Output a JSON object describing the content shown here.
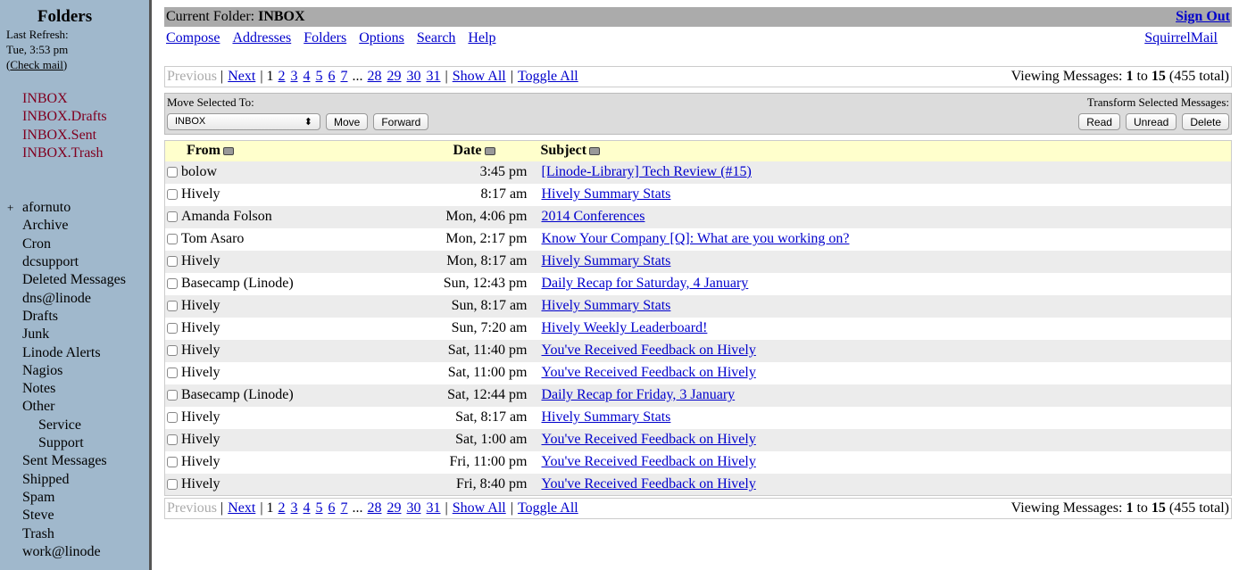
{
  "sidebar": {
    "title": "Folders",
    "last_refresh_label": "Last Refresh:",
    "last_refresh_time": "Tue, 3:53 pm",
    "check_mail": "Check mail",
    "special_folders": [
      "INBOX",
      "INBOX.Drafts",
      "INBOX.Sent",
      "INBOX.Trash"
    ],
    "folders": [
      {
        "name": "afornuto",
        "expander": "+"
      },
      {
        "name": "Archive"
      },
      {
        "name": "Cron"
      },
      {
        "name": "dcsupport"
      },
      {
        "name": "Deleted Messages"
      },
      {
        "name": "dns@linode"
      },
      {
        "name": "Drafts"
      },
      {
        "name": "Junk"
      },
      {
        "name": "Linode Alerts"
      },
      {
        "name": "Nagios"
      },
      {
        "name": "Notes"
      },
      {
        "name": "Other"
      },
      {
        "name": "Service",
        "sub": true
      },
      {
        "name": "Support",
        "sub": true
      },
      {
        "name": "Sent Messages"
      },
      {
        "name": "Shipped"
      },
      {
        "name": "Spam"
      },
      {
        "name": "Steve"
      },
      {
        "name": "Trash"
      },
      {
        "name": "work@linode"
      }
    ]
  },
  "header": {
    "current_folder_label": "Current Folder:",
    "current_folder": "INBOX",
    "sign_out": "Sign Out",
    "brand": "SquirrelMail",
    "menu": [
      "Compose",
      "Addresses",
      "Folders",
      "Options",
      "Search",
      "Help"
    ]
  },
  "pager": {
    "previous": "Previous",
    "next": "Next",
    "current_page": "1",
    "pages": [
      "2",
      "3",
      "4",
      "5",
      "6",
      "7"
    ],
    "ellipsis": "...",
    "last_pages": [
      "28",
      "29",
      "30",
      "31"
    ],
    "show_all": "Show All",
    "toggle_all": "Toggle All",
    "viewing_label": "Viewing Messages:",
    "from": "1",
    "to_label": "to",
    "to": "15",
    "total": "(455 total)"
  },
  "toolbar": {
    "move_label": "Move Selected To:",
    "move_select": "INBOX",
    "move": "Move",
    "forward": "Forward",
    "transform_label": "Transform Selected Messages:",
    "read": "Read",
    "unread": "Unread",
    "delete": "Delete"
  },
  "table": {
    "columns": [
      "From",
      "Date",
      "Subject"
    ],
    "rows": [
      {
        "from": "bolow",
        "date": "3:45 pm",
        "subject": "[Linode-Library] Tech Review (#15)"
      },
      {
        "from": "Hively",
        "date": "8:17 am",
        "subject": "Hively Summary Stats"
      },
      {
        "from": "Amanda Folson",
        "date": "Mon, 4:06 pm",
        "subject": "2014 Conferences"
      },
      {
        "from": "Tom Asaro",
        "date": "Mon, 2:17 pm",
        "subject": "Know Your Company [Q]: What are you working on?"
      },
      {
        "from": "Hively",
        "date": "Mon, 8:17 am",
        "subject": "Hively Summary Stats"
      },
      {
        "from": "Basecamp (Linode)",
        "date": "Sun, 12:43 pm",
        "subject": "Daily Recap for Saturday, 4 January"
      },
      {
        "from": "Hively",
        "date": "Sun, 8:17 am",
        "subject": "Hively Summary Stats"
      },
      {
        "from": "Hively",
        "date": "Sun, 7:20 am",
        "subject": "Hively Weekly Leaderboard!"
      },
      {
        "from": "Hively",
        "date": "Sat, 11:40 pm",
        "subject": "You've Received Feedback on Hively"
      },
      {
        "from": "Hively",
        "date": "Sat, 11:00 pm",
        "subject": "You've Received Feedback on Hively"
      },
      {
        "from": "Basecamp (Linode)",
        "date": "Sat, 12:44 pm",
        "subject": "Daily Recap for Friday, 3 January"
      },
      {
        "from": "Hively",
        "date": "Sat, 8:17 am",
        "subject": "Hively Summary Stats"
      },
      {
        "from": "Hively",
        "date": "Sat, 1:00 am",
        "subject": "You've Received Feedback on Hively"
      },
      {
        "from": "Hively",
        "date": "Fri, 11:00 pm",
        "subject": "You've Received Feedback on Hively"
      },
      {
        "from": "Hively",
        "date": "Fri, 8:40 pm",
        "subject": "You've Received Feedback on Hively"
      }
    ]
  },
  "colors": {
    "sidebar": "#a0b8cc",
    "special_folder": "#800020",
    "link": "#0000cc",
    "header_row": "#ffffcc",
    "title_bar": "#ababab"
  }
}
